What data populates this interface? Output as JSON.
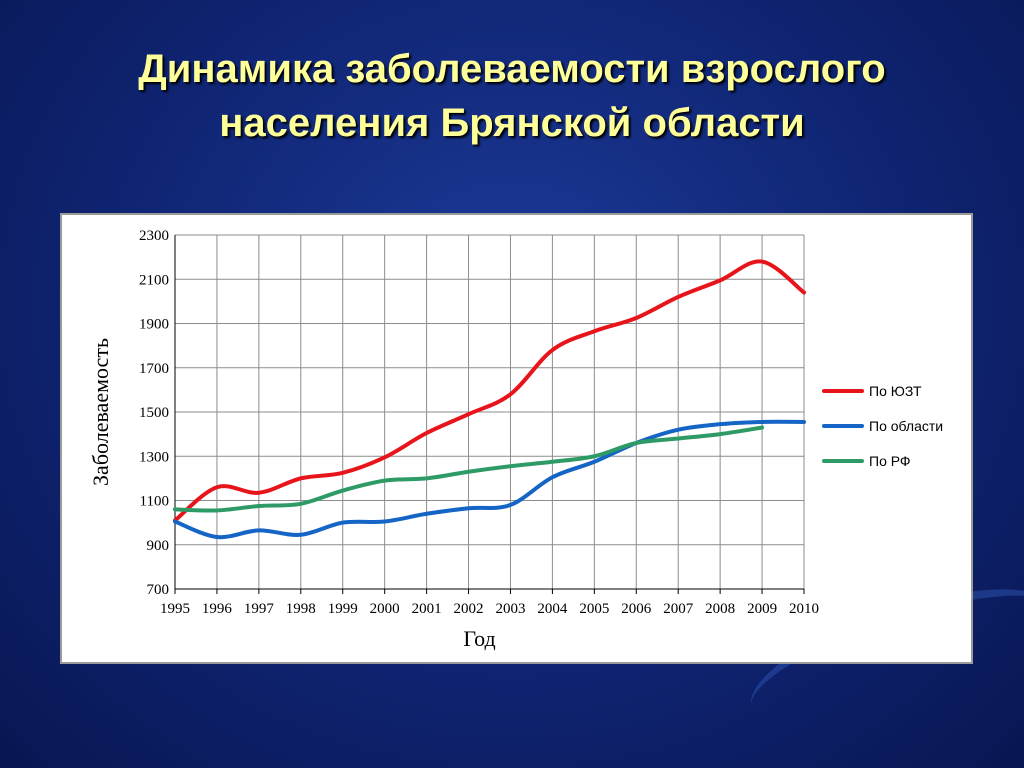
{
  "slide": {
    "title_line1": "Динамика заболеваемости взрослого",
    "title_line2": "населения Брянской области"
  },
  "colors": {
    "background": "#0f2472",
    "title": "#ffff99",
    "grid": "#8c8c8c"
  },
  "chart_data": {
    "type": "line",
    "title": "",
    "xlabel": "Год",
    "ylabel": "Заболеваемость",
    "x": [
      1995,
      1996,
      1997,
      1998,
      1999,
      2000,
      2001,
      2002,
      2003,
      2004,
      2005,
      2006,
      2007,
      2008,
      2009,
      2010
    ],
    "ylim": [
      700,
      2300
    ],
    "yticks": [
      700,
      900,
      1100,
      1300,
      1500,
      1700,
      1900,
      2100,
      2300
    ],
    "grid": true,
    "legend_position": "right",
    "series": [
      {
        "name": "По ЮЗТ",
        "color": "#e8141b",
        "values": [
          1010,
          1160,
          1135,
          1200,
          1225,
          1295,
          1405,
          1490,
          1580,
          1780,
          1865,
          1925,
          2020,
          2095,
          2180,
          2040
        ]
      },
      {
        "name": "По области",
        "color": "#1565c6",
        "values": [
          1005,
          935,
          965,
          945,
          1000,
          1005,
          1040,
          1065,
          1080,
          1205,
          1275,
          1360,
          1420,
          1445,
          1455,
          1455
        ]
      },
      {
        "name": "По РФ",
        "color": "#2e9b66",
        "values": [
          1060,
          1055,
          1075,
          1085,
          1145,
          1190,
          1200,
          1230,
          1255,
          1275,
          1300,
          1360,
          1380,
          1400,
          1430,
          null
        ]
      }
    ]
  }
}
